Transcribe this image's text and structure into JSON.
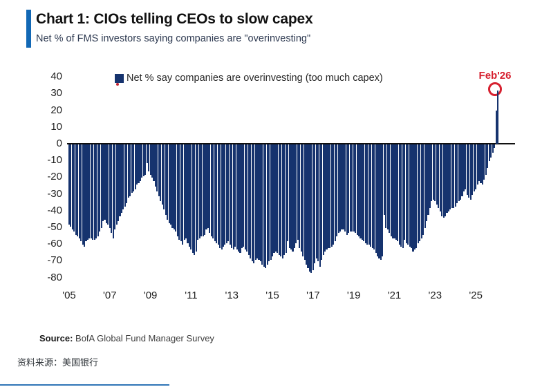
{
  "header": {
    "title": "Chart 1: CIOs telling CEOs to slow capex",
    "subtitle": "Net % of FMS investors saying companies are \"overinvesting\""
  },
  "legend": {
    "label": "Net % say companies are overinvesting (too much capex)"
  },
  "annotation": {
    "label": "Feb'26"
  },
  "footer": {
    "source_label": "Source:",
    "source_text": "BofA Global Fund Manager Survey",
    "source_cn": "资料来源：美国银行"
  },
  "colors": {
    "bar": "#16336e",
    "accent": "#1268b5",
    "annotation": "#d6202f",
    "axis": "#111111"
  },
  "chart_data": {
    "type": "bar",
    "title": "Chart 1: CIOs telling CEOs to slow capex",
    "subtitle": "Net % of FMS investors saying companies are \"overinvesting\"",
    "frequency": "monthly",
    "x_start": "2005-01",
    "x_end": "2026-02",
    "ylim": [
      -80,
      40
    ],
    "grid": false,
    "legend_position": "top",
    "y_ticks": [
      40,
      30,
      20,
      10,
      0,
      -10,
      -20,
      -30,
      -40,
      -50,
      -60,
      -70,
      -80
    ],
    "x_tick_labels": [
      "'05",
      "'07",
      "'09",
      "'11",
      "'13",
      "'15",
      "'17",
      "'19",
      "'21",
      "'23",
      "'25"
    ],
    "x_tick_years": [
      2005,
      2007,
      2009,
      2011,
      2013,
      2015,
      2017,
      2019,
      2021,
      2023,
      2025
    ],
    "highlight": {
      "label": "Feb'26",
      "x": "2026-02",
      "value": 32
    },
    "series": [
      {
        "name": "Net % say companies are overinvesting (too much capex)",
        "values": [
          -48,
          -49,
          -51,
          -52,
          -54,
          -55,
          -56,
          -58,
          -60,
          -61,
          -58,
          -57,
          -56,
          -56,
          -57,
          -57,
          -56,
          -55,
          -52,
          -50,
          -46,
          -45,
          -47,
          -48,
          -50,
          -53,
          -56,
          -51,
          -48,
          -46,
          -43,
          -41,
          -39,
          -37,
          -35,
          -32,
          -31,
          -29,
          -28,
          -27,
          -24,
          -23,
          -22,
          -20,
          -19,
          -18,
          -11,
          -16,
          -18,
          -20,
          -22,
          -25,
          -28,
          -31,
          -34,
          -36,
          -39,
          -42,
          -45,
          -47,
          -48,
          -50,
          -51,
          -52,
          -55,
          -57,
          -58,
          -60,
          -57,
          -56,
          -59,
          -61,
          -63,
          -65,
          -66,
          -64,
          -57,
          -56,
          -55,
          -55,
          -54,
          -51,
          -50,
          -53,
          -55,
          -56,
          -58,
          -59,
          -60,
          -62,
          -63,
          -61,
          -60,
          -59,
          -58,
          -60,
          -62,
          -63,
          -61,
          -63,
          -64,
          -65,
          -62,
          -61,
          -63,
          -64,
          -66,
          -68,
          -70,
          -71,
          -69,
          -68,
          -69,
          -70,
          -72,
          -73,
          -74,
          -72,
          -70,
          -69,
          -67,
          -65,
          -64,
          -65,
          -66,
          -67,
          -68,
          -66,
          -65,
          -58,
          -62,
          -63,
          -64,
          -62,
          -59,
          -57,
          -62,
          -64,
          -67,
          -69,
          -72,
          -74,
          -76,
          -77,
          -75,
          -71,
          -68,
          -70,
          -73,
          -69,
          -66,
          -64,
          -63,
          -62,
          -62,
          -61,
          -60,
          -58,
          -55,
          -53,
          -52,
          -51,
          -51,
          -52,
          -54,
          -53,
          -52,
          -52,
          -52,
          -53,
          -54,
          -55,
          -56,
          -57,
          -58,
          -59,
          -60,
          -60,
          -61,
          -62,
          -63,
          -65,
          -67,
          -68,
          -69,
          -67,
          -42,
          -50,
          -51,
          -53,
          -55,
          -56,
          -56,
          -57,
          -58,
          -60,
          -61,
          -62,
          -57,
          -59,
          -60,
          -61,
          -62,
          -64,
          -63,
          -62,
          -59,
          -58,
          -56,
          -54,
          -50,
          -46,
          -42,
          -38,
          -34,
          -33,
          -34,
          -36,
          -38,
          -40,
          -43,
          -44,
          -43,
          -41,
          -40,
          -39,
          -38,
          -38,
          -37,
          -35,
          -34,
          -33,
          -31,
          -28,
          -27,
          -30,
          -32,
          -33,
          -30,
          -28,
          -27,
          -24,
          -22,
          -23,
          -24,
          -21,
          -18,
          -14,
          -10,
          -8,
          -5,
          -2,
          20,
          32
        ]
      }
    ]
  }
}
